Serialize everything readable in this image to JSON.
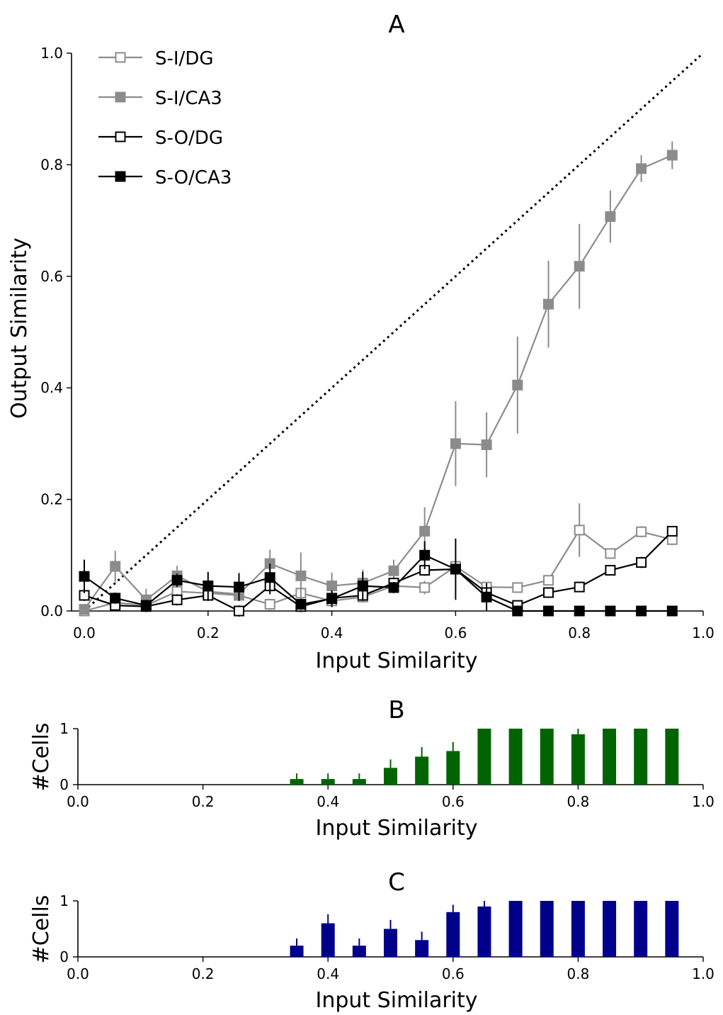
{
  "chart_data": [
    {
      "panel": "A",
      "type": "line",
      "title": "A",
      "xlabel": "Input Similarity",
      "ylabel": "Output Similarity",
      "xlim": [
        0,
        1
      ],
      "ylim": [
        0,
        1
      ],
      "xticks": [
        "0.0",
        "0.2",
        "0.4",
        "0.6",
        "0.8",
        "1.0"
      ],
      "yticks": [
        "0.0",
        "0.2",
        "0.4",
        "0.6",
        "0.8",
        "1.0"
      ],
      "legend_position": "top-left",
      "grid": false,
      "identity_line": true,
      "x": [
        0,
        0.05,
        0.1,
        0.15,
        0.2,
        0.25,
        0.3,
        0.35,
        0.4,
        0.45,
        0.5,
        0.55,
        0.6,
        0.65,
        0.7,
        0.75,
        0.8,
        0.85,
        0.9,
        0.95
      ],
      "series": [
        {
          "name": "S-I/DG",
          "color": "#8c8c8c",
          "marker": "open-square",
          "values": [
            0.0,
            0.015,
            0.01,
            0.035,
            0.032,
            0.028,
            0.012,
            0.032,
            0.018,
            0.025,
            0.045,
            0.042,
            0.08,
            0.043,
            0.042,
            0.055,
            0.145,
            0.103,
            0.142,
            0.128
          ],
          "errors": [
            0.005,
            0.01,
            0.01,
            0.01,
            0.01,
            0.01,
            0.01,
            0.01,
            0.01,
            0.01,
            0.01,
            0.012,
            0.01,
            0.008,
            0.008,
            0.008,
            0.048,
            0.008,
            0.01,
            0.01
          ]
        },
        {
          "name": "S-I/CA3",
          "color": "#8c8c8c",
          "marker": "filled-square",
          "values": [
            0.003,
            0.08,
            0.02,
            0.063,
            0.035,
            0.03,
            0.085,
            0.063,
            0.045,
            0.05,
            0.072,
            0.143,
            0.3,
            0.298,
            0.405,
            0.55,
            0.618,
            0.707,
            0.793,
            0.817
          ],
          "errors": [
            0.005,
            0.028,
            0.02,
            0.018,
            0.01,
            0.01,
            0.025,
            0.042,
            0.024,
            0.024,
            0.02,
            0.043,
            0.076,
            0.058,
            0.087,
            0.078,
            0.076,
            0.047,
            0.024,
            0.025
          ]
        },
        {
          "name": "S-O/DG",
          "color": "#000000",
          "marker": "open-square",
          "values": [
            0.028,
            0.01,
            0.008,
            0.02,
            0.028,
            0.0,
            0.045,
            0.008,
            0.023,
            0.028,
            0.05,
            0.073,
            0.075,
            0.033,
            0.01,
            0.033,
            0.043,
            0.073,
            0.087,
            0.143
          ],
          "errors": [
            0.01,
            0.01,
            0.01,
            0.01,
            0.01,
            0.01,
            0.015,
            0.01,
            0.01,
            0.01,
            0.01,
            0.01,
            0.01,
            0.01,
            0.005,
            0.005,
            0.005,
            0.008,
            0.01,
            0.008
          ]
        },
        {
          "name": "S-O/CA3",
          "color": "#000000",
          "marker": "filled-square",
          "values": [
            0.062,
            0.023,
            0.01,
            0.055,
            0.045,
            0.043,
            0.06,
            0.012,
            0.022,
            0.045,
            0.042,
            0.1,
            0.075,
            0.025,
            0.0,
            0.0,
            0.0,
            0.0,
            0.0,
            0.0
          ],
          "errors": [
            0.03,
            0.01,
            0.01,
            0.012,
            0.025,
            0.025,
            0.025,
            0.01,
            0.015,
            0.025,
            0.01,
            0.025,
            0.055,
            0.025,
            0.0,
            0.0,
            0.0,
            0.0,
            0.0,
            0.0
          ]
        }
      ]
    },
    {
      "panel": "B",
      "type": "bar",
      "title": "B",
      "xlabel": "Input Similarity",
      "ylabel": "#Cells",
      "xlim": [
        0,
        1
      ],
      "ylim": [
        0,
        1
      ],
      "xticks": [
        "0.0",
        "0.2",
        "0.4",
        "0.6",
        "0.8",
        "1.0"
      ],
      "yticks": [
        "0",
        "1"
      ],
      "color": "#006400",
      "x": [
        0.35,
        0.4,
        0.45,
        0.5,
        0.55,
        0.6,
        0.65,
        0.7,
        0.75,
        0.8,
        0.85,
        0.9,
        0.95
      ],
      "values": [
        0.1,
        0.1,
        0.1,
        0.3,
        0.5,
        0.6,
        1.0,
        1.0,
        1.0,
        0.9,
        1.0,
        1.0,
        1.0
      ],
      "errors": [
        0.1,
        0.1,
        0.1,
        0.15,
        0.17,
        0.16,
        0.0,
        0.0,
        0.0,
        0.1,
        0.0,
        0.0,
        0.0
      ]
    },
    {
      "panel": "C",
      "type": "bar",
      "title": "C",
      "xlabel": "Input Similarity",
      "ylabel": "#Cells",
      "xlim": [
        0,
        1
      ],
      "ylim": [
        0,
        1
      ],
      "xticks": [
        "0.0",
        "0.2",
        "0.4",
        "0.6",
        "0.8",
        "1.0"
      ],
      "yticks": [
        "0",
        "1"
      ],
      "color": "#00008b",
      "x": [
        0.35,
        0.4,
        0.45,
        0.5,
        0.55,
        0.6,
        0.65,
        0.7,
        0.75,
        0.8,
        0.85,
        0.9,
        0.95
      ],
      "values": [
        0.2,
        0.6,
        0.2,
        0.5,
        0.3,
        0.8,
        0.9,
        1.0,
        1.0,
        1.0,
        1.0,
        1.0,
        1.0
      ],
      "errors": [
        0.13,
        0.16,
        0.13,
        0.16,
        0.15,
        0.13,
        0.1,
        0.0,
        0.0,
        0.0,
        0.0,
        0.0,
        0.0
      ]
    }
  ]
}
